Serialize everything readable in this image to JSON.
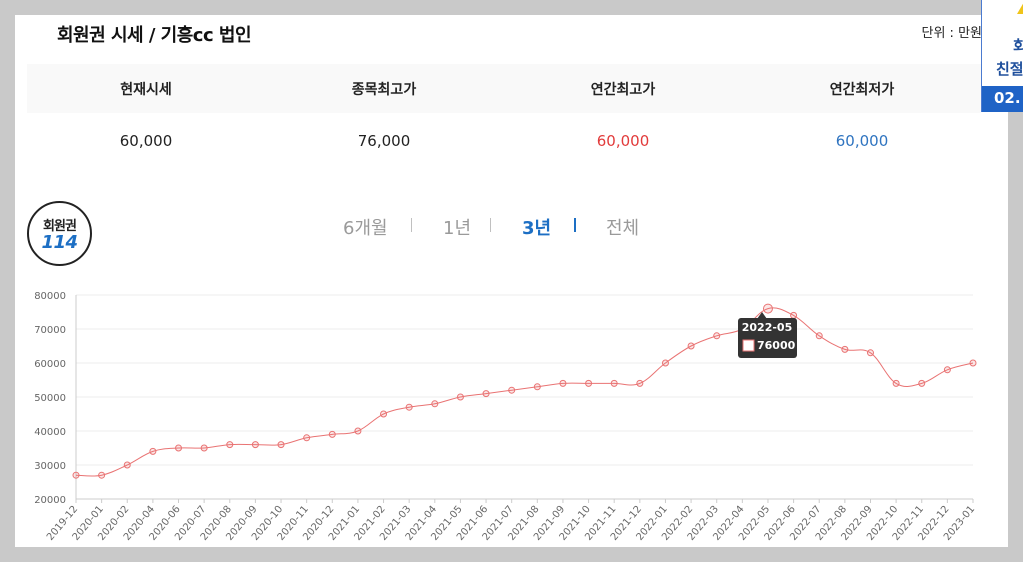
{
  "header": {
    "title": "회원권 시세 / 기흥cc 법인",
    "unit": "단위 : 만원"
  },
  "stats": {
    "headers": [
      "현재시세",
      "종목최고가",
      "연간최고가",
      "연간최저가"
    ],
    "values": [
      "60,000",
      "76,000",
      "60,000",
      "60,000"
    ]
  },
  "badge": {
    "line1": "회원권",
    "line2": "114"
  },
  "ranges": {
    "items": [
      "6개월",
      "1년",
      "3년",
      "전체"
    ],
    "active": "3년"
  },
  "side_banner": {
    "line1": "회",
    "line2": "친절",
    "line3": "02."
  },
  "tooltip": {
    "label": "2022-05",
    "value": "76000"
  },
  "colors": {
    "line": "#e97373",
    "accent": "#1d6fc4",
    "red": "#e23b3b",
    "blue": "#2f74c0"
  },
  "chart_data": {
    "type": "line",
    "title": "",
    "xlabel": "",
    "ylabel": "",
    "ylim": [
      20000,
      80000
    ],
    "yticks": [
      20000,
      30000,
      40000,
      50000,
      60000,
      70000,
      80000
    ],
    "grid": true,
    "x": [
      "2019-12",
      "2020-01",
      "2020-02",
      "2020-04",
      "2020-06",
      "2020-07",
      "2020-08",
      "2020-09",
      "2020-10",
      "2020-11",
      "2020-12",
      "2021-01",
      "2021-02",
      "2021-03",
      "2021-04",
      "2021-05",
      "2021-06",
      "2021-07",
      "2021-08",
      "2021-09",
      "2021-10",
      "2021-11",
      "2021-12",
      "2022-01",
      "2022-02",
      "2022-03",
      "2022-04",
      "2022-05",
      "2022-06",
      "2022-07",
      "2022-08",
      "2022-09",
      "2022-10",
      "2022-11",
      "2022-12",
      "2023-01"
    ],
    "series": [
      {
        "values": [
          27000,
          27000,
          30000,
          34000,
          35000,
          35000,
          36000,
          36000,
          36000,
          38000,
          39000,
          40000,
          45000,
          47000,
          48000,
          50000,
          51000,
          52000,
          53000,
          54000,
          54000,
          54000,
          54000,
          60000,
          65000,
          68000,
          70000,
          76000,
          74000,
          68000,
          64000,
          63000,
          54000,
          54000,
          58000,
          60000
        ]
      }
    ]
  }
}
